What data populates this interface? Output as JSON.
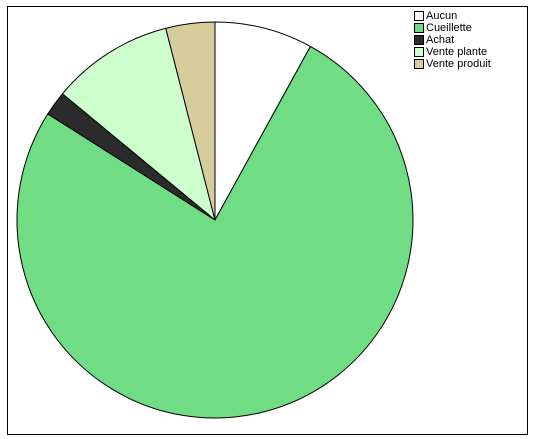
{
  "chart_data": {
    "type": "pie",
    "title": "",
    "start_angle_deg": 0,
    "direction": "clockwise",
    "legend_position": "top-right",
    "slices": [
      {
        "label": "Aucun",
        "value": 8,
        "color": "#ffffff"
      },
      {
        "label": "Cueillette",
        "value": 76,
        "color": "#70dc84"
      },
      {
        "label": "Achat",
        "value": 2,
        "color": "#2b2b2b"
      },
      {
        "label": "Vente plante",
        "value": 10,
        "color": "#ccffcc"
      },
      {
        "label": "Vente produit",
        "value": 4,
        "color": "#d6cc9c"
      }
    ]
  }
}
